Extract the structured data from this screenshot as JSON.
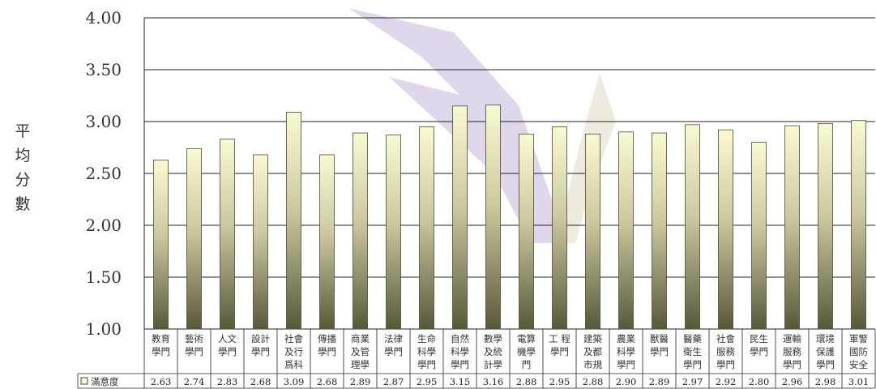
{
  "chart_data": {
    "type": "bar",
    "ylabel": "平均分數",
    "ylim": [
      1.0,
      4.0
    ],
    "yticks": [
      "1.00",
      "1.50",
      "2.00",
      "2.50",
      "3.00",
      "3.50",
      "4.00"
    ],
    "grid": true,
    "legend": "bottom-left, in data table",
    "series": [
      {
        "name": "滿意度",
        "values": [
          2.63,
          2.74,
          2.83,
          2.68,
          3.09,
          2.68,
          2.89,
          2.87,
          2.95,
          3.15,
          3.16,
          2.88,
          2.95,
          2.88,
          2.9,
          2.89,
          2.97,
          2.92,
          2.8,
          2.96,
          2.98,
          3.01
        ],
        "value_labels": [
          "2.63",
          "2.74",
          "2.83",
          "2.68",
          "3.09",
          "2.68",
          "2.89",
          "2.87",
          "2.95",
          "3.15",
          "3.16",
          "2.88",
          "2.95",
          "2.88",
          "2.90",
          "2.89",
          "2.97",
          "2.92",
          "2.80",
          "2.96",
          "2.98",
          "3.01"
        ]
      }
    ],
    "categories": [
      [
        "教育",
        "學門"
      ],
      [
        "藝術",
        "學門"
      ],
      [
        "人文",
        "學門"
      ],
      [
        "設計",
        "學門"
      ],
      [
        "社會",
        "及行",
        "爲科"
      ],
      [
        "傳播",
        "學門"
      ],
      [
        "商業",
        "及管",
        "理學"
      ],
      [
        "法律",
        "學門"
      ],
      [
        "生命",
        "科學",
        "學門"
      ],
      [
        "自然",
        "科學",
        "學門"
      ],
      [
        "數學",
        "及統",
        "計學"
      ],
      [
        "電算",
        "機學",
        "門"
      ],
      [
        "工 程",
        "學門"
      ],
      [
        "建築",
        "及都",
        "市規"
      ],
      [
        "農業",
        "科學",
        "學門"
      ],
      [
        "獸醫",
        "學門"
      ],
      [
        "醫藥",
        "衛生",
        "學門"
      ],
      [
        "社會",
        "服務",
        "學門"
      ],
      [
        "民生",
        "學門"
      ],
      [
        "運輸",
        "服務",
        "學門"
      ],
      [
        "環境",
        "保護",
        "學門"
      ],
      [
        "軍警",
        "國防",
        "安全"
      ]
    ]
  },
  "colors": {
    "bar_top": "#fafad2",
    "bar_mid": "#ccc9a0",
    "bar_bottom": "#58583a",
    "bar_stroke": "#4a4a30",
    "grid": "#222222",
    "watermark": "#c9b8dd",
    "watermark2": "#e3dcc8"
  }
}
